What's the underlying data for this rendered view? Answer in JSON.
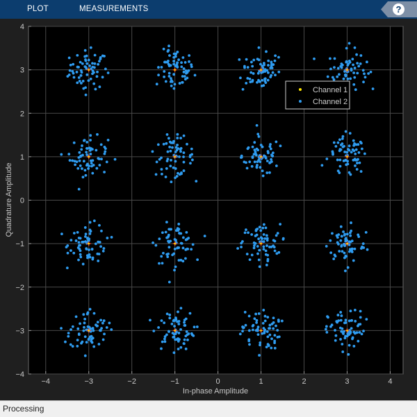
{
  "toolstrip": {
    "tabs": [
      {
        "label": "PLOT"
      },
      {
        "label": "MEASUREMENTS"
      }
    ],
    "help_label": "?",
    "help_icon": "help-icon"
  },
  "status": {
    "text": "Processing"
  },
  "colors": {
    "toolstrip": "#0c3d6e",
    "axes_bg": "#000000",
    "figure_bg": "#1f1f1f",
    "channel1": "#ffe600",
    "channel2": "#2f9cf0",
    "reference": "#ff3b1f",
    "grid": "#4a4a4a",
    "text": "#c8c8c8"
  },
  "chart_data": {
    "type": "scatter",
    "title": "",
    "xlabel": "In-phase Amplitude",
    "ylabel": "Quadrature Amplitude",
    "xlim": [
      -4.4,
      4.3
    ],
    "ylim": [
      -4,
      4
    ],
    "xticks": [
      -4,
      -3,
      -2,
      -1,
      0,
      1,
      2,
      3,
      4
    ],
    "yticks": [
      -4,
      -3,
      -2,
      -1,
      0,
      1,
      2,
      3,
      4
    ],
    "grid": true,
    "legend_position": "top-right",
    "legend": [
      {
        "name": "Channel 1",
        "color": "#ffe600"
      },
      {
        "name": "Channel 2",
        "color": "#2f9cf0"
      }
    ],
    "reference_points": [
      [
        -3,
        3
      ],
      [
        -1,
        3
      ],
      [
        1,
        3
      ],
      [
        3,
        3
      ],
      [
        -3,
        1
      ],
      [
        -1,
        1
      ],
      [
        1,
        1
      ],
      [
        3,
        1
      ],
      [
        -3,
        -1
      ],
      [
        -1,
        -1
      ],
      [
        1,
        -1
      ],
      [
        3,
        -1
      ],
      [
        -3,
        -3
      ],
      [
        -1,
        -3
      ],
      [
        1,
        -3
      ],
      [
        3,
        -3
      ]
    ],
    "noise_spread": 0.22,
    "points_per_cluster": 55,
    "series": [
      {
        "name": "Channel 2",
        "values": [
          [
            -3.42,
            3.11
          ],
          [
            -2.61,
            3.02
          ],
          [
            -3.05,
            3.32
          ],
          [
            -2.88,
            2.68
          ],
          [
            -3.21,
            2.74
          ],
          [
            -2.73,
            3.25
          ],
          [
            -3.49,
            2.85
          ],
          [
            -2.95,
            3.51
          ],
          [
            -3.12,
            2.57
          ],
          [
            -2.55,
            2.93
          ],
          [
            -1.23,
            3.18
          ],
          [
            -0.71,
            2.94
          ],
          [
            -1.08,
            2.63
          ],
          [
            -0.94,
            3.41
          ],
          [
            -1.38,
            2.88
          ],
          [
            -0.62,
            3.12
          ],
          [
            -1.15,
            3.45
          ],
          [
            -0.83,
            2.71
          ],
          [
            -1.02,
            2.57
          ],
          [
            -1.31,
            3.06
          ],
          [
            0.62,
            3.05
          ],
          [
            1.24,
            3.18
          ],
          [
            0.91,
            2.71
          ],
          [
            1.12,
            3.42
          ],
          [
            0.74,
            2.79
          ],
          [
            1.33,
            2.88
          ],
          [
            0.95,
            3.51
          ],
          [
            1.06,
            2.64
          ],
          [
            0.58,
            2.55
          ],
          [
            1.41,
            3.29
          ],
          [
            2.62,
            3.02
          ],
          [
            3.31,
            3.14
          ],
          [
            2.88,
            2.71
          ],
          [
            3.22,
            3.35
          ],
          [
            2.71,
            3.26
          ],
          [
            3.42,
            2.83
          ],
          [
            3.05,
            3.61
          ],
          [
            2.93,
            2.58
          ],
          [
            3.55,
            2.95
          ],
          [
            2.77,
            2.84
          ],
          [
            -3.38,
            0.91
          ],
          [
            -2.62,
            1.12
          ],
          [
            -3.11,
            1.37
          ],
          [
            -2.91,
            0.62
          ],
          [
            -3.25,
            0.73
          ],
          [
            -2.71,
            1.28
          ],
          [
            -3.46,
            1.06
          ],
          [
            -2.96,
            1.49
          ],
          [
            -3.07,
            0.57
          ],
          [
            -2.58,
            0.88
          ],
          [
            -1.42,
            0.88
          ],
          [
            -0.61,
            1.18
          ],
          [
            -1.11,
            1.34
          ],
          [
            -0.85,
            0.63
          ],
          [
            -1.31,
            0.71
          ],
          [
            -0.72,
            1.29
          ],
          [
            -1.18,
            1.51
          ],
          [
            -0.95,
            0.55
          ],
          [
            -1.52,
            1.12
          ],
          [
            -0.64,
            0.85
          ],
          [
            0.61,
            0.88
          ],
          [
            1.28,
            1.09
          ],
          [
            0.85,
            1.33
          ],
          [
            1.14,
            0.63
          ],
          [
            0.71,
            1.21
          ],
          [
            1.36,
            0.79
          ],
          [
            0.93,
            1.52
          ],
          [
            1.05,
            0.56
          ],
          [
            0.55,
            1.02
          ],
          [
            1.45,
            1.25
          ],
          [
            2.66,
            1.12
          ],
          [
            3.29,
            0.86
          ],
          [
            2.82,
            0.63
          ],
          [
            3.15,
            1.37
          ],
          [
            2.74,
            1.24
          ],
          [
            3.41,
            1.07
          ],
          [
            2.97,
            1.58
          ],
          [
            3.08,
            0.59
          ],
          [
            2.53,
            0.95
          ],
          [
            3.23,
            0.71
          ],
          [
            -3.41,
            -0.92
          ],
          [
            -2.65,
            -1.11
          ],
          [
            -3.08,
            -0.63
          ],
          [
            -2.91,
            -1.36
          ],
          [
            -3.26,
            -0.74
          ],
          [
            -2.76,
            -1.24
          ],
          [
            -3.52,
            -1.08
          ],
          [
            -2.97,
            -0.51
          ],
          [
            -3.13,
            -1.47
          ],
          [
            -2.57,
            -0.87
          ],
          [
            -1.36,
            -0.89
          ],
          [
            -0.62,
            -1.13
          ],
          [
            -1.09,
            -0.67
          ],
          [
            -0.86,
            -1.38
          ],
          [
            -1.27,
            -1.22
          ],
          [
            -0.73,
            -0.74
          ],
          [
            -1.01,
            -1.61
          ],
          [
            -0.91,
            -0.55
          ],
          [
            -1.44,
            -1.04
          ],
          [
            -0.58,
            -1.02
          ],
          [
            0.57,
            -0.95
          ],
          [
            1.31,
            -1.08
          ],
          [
            0.89,
            -0.68
          ],
          [
            1.16,
            -1.36
          ],
          [
            0.68,
            -1.24
          ],
          [
            1.39,
            -0.76
          ],
          [
            0.97,
            -1.53
          ],
          [
            1.07,
            -0.56
          ],
          [
            0.46,
            -1.11
          ],
          [
            1.52,
            -0.88
          ],
          [
            2.61,
            -0.93
          ],
          [
            3.33,
            -1.11
          ],
          [
            2.86,
            -0.61
          ],
          [
            3.15,
            -1.39
          ],
          [
            2.71,
            -1.26
          ],
          [
            3.44,
            -0.74
          ],
          [
            3.02,
            -1.55
          ],
          [
            3.09,
            -0.52
          ],
          [
            2.52,
            -1.06
          ],
          [
            3.27,
            -0.84
          ],
          [
            -3.37,
            -2.91
          ],
          [
            -2.64,
            -3.08
          ],
          [
            -3.12,
            -2.63
          ],
          [
            -2.88,
            -3.37
          ],
          [
            -3.26,
            -3.22
          ],
          [
            -2.72,
            -2.76
          ],
          [
            -3.47,
            -3.06
          ],
          [
            -2.97,
            -2.51
          ],
          [
            -3.08,
            -3.58
          ],
          [
            -2.58,
            -2.93
          ],
          [
            -1.38,
            -2.93
          ],
          [
            -0.61,
            -3.07
          ],
          [
            -1.12,
            -2.64
          ],
          [
            -0.86,
            -3.39
          ],
          [
            -1.29,
            -3.26
          ],
          [
            -0.74,
            -2.73
          ],
          [
            -1.02,
            -3.51
          ],
          [
            -0.93,
            -2.57
          ],
          [
            -1.49,
            -3.01
          ],
          [
            -0.57,
            -3.12
          ],
          [
            0.59,
            -2.94
          ],
          [
            1.32,
            -3.11
          ],
          [
            0.88,
            -2.62
          ],
          [
            1.13,
            -3.38
          ],
          [
            0.72,
            -3.24
          ],
          [
            1.41,
            -2.79
          ],
          [
            0.96,
            -3.57
          ],
          [
            1.06,
            -2.53
          ],
          [
            0.52,
            -3.08
          ],
          [
            1.29,
            -2.71
          ],
          [
            2.62,
            -2.91
          ],
          [
            3.34,
            -3.08
          ],
          [
            2.87,
            -2.66
          ],
          [
            3.16,
            -3.36
          ],
          [
            2.73,
            -3.23
          ],
          [
            3.45,
            -2.74
          ],
          [
            3.03,
            -3.55
          ],
          [
            3.08,
            -2.55
          ],
          [
            2.53,
            -3.04
          ],
          [
            3.27,
            -2.86
          ]
        ]
      }
    ]
  }
}
